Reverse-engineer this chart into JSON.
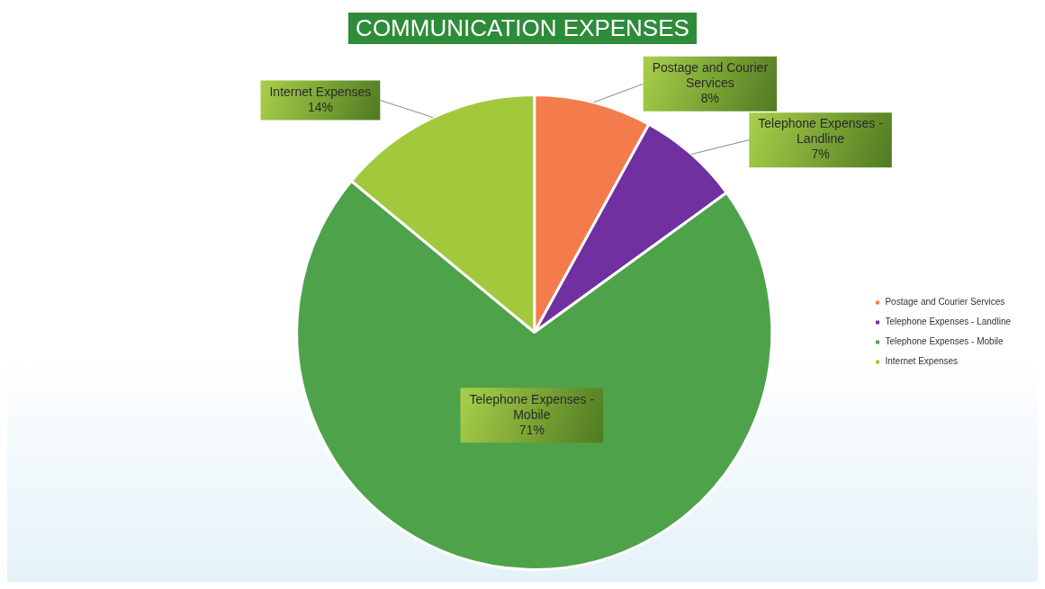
{
  "chart_data": {
    "type": "pie",
    "title": "COMMUNICATION EXPENSES",
    "categories": [
      "Postage and Courier Services",
      "Telephone Expenses - Landline",
      "Telephone Expenses - Mobile",
      "Internet Expenses"
    ],
    "values": [
      8,
      7,
      71,
      14
    ],
    "colors": [
      "#f47c4c",
      "#7030a0",
      "#4ea24a",
      "#a2c83c"
    ],
    "value_labels": [
      "8%",
      "7%",
      "71%",
      "14%"
    ],
    "legend": "right"
  }
}
